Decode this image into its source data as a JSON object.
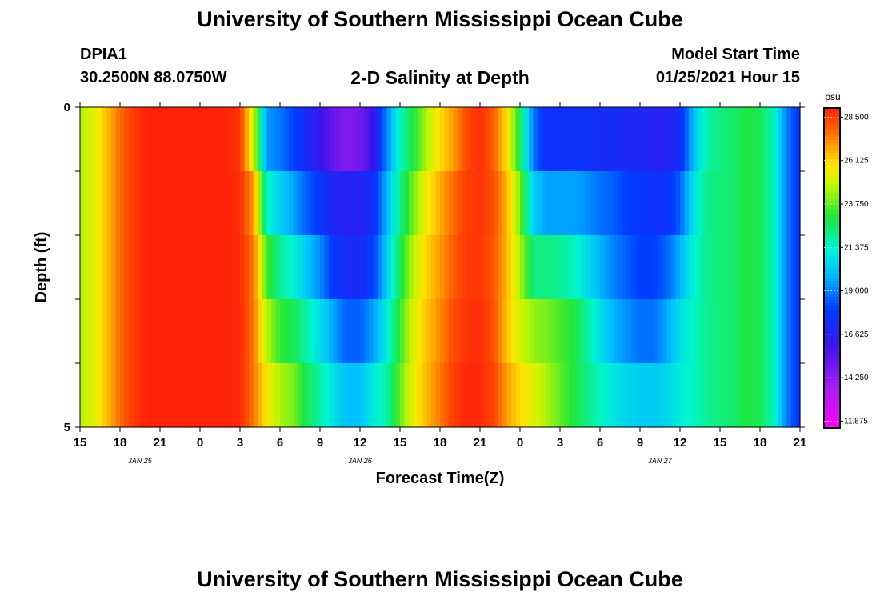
{
  "header": {
    "title": "University of Southern Mississippi Ocean Cube",
    "station_id": "DPIA1",
    "station_coords": "30.2500N 88.0750W",
    "plot_title": "2-D Salinity at Depth",
    "start_label": "Model Start Time",
    "start_value": "01/25/2021 Hour 15"
  },
  "footer": {
    "title": "University of Southern Mississippi Ocean Cube"
  },
  "chart_data": {
    "type": "heatmap",
    "title": "2-D Salinity at Depth",
    "xlabel": "Forecast Time(Z)",
    "ylabel": "Depth (ft)",
    "x_hours": [
      0,
      3,
      6,
      9,
      12,
      15,
      18,
      21,
      24,
      27,
      30,
      33,
      36,
      39,
      42,
      45,
      48,
      51,
      54
    ],
    "x_tick_labels": [
      "15",
      "18",
      "21",
      "0",
      "3",
      "6",
      "9",
      "12",
      "15",
      "18",
      "21",
      "0",
      "3",
      "6",
      "9",
      "12",
      "15",
      "18",
      "21"
    ],
    "date_labels": [
      {
        "label": "JAN  25",
        "hour": 4.5
      },
      {
        "label": "JAN  26",
        "hour": 21
      },
      {
        "label": "JAN  27",
        "hour": 43.5
      }
    ],
    "y_tick_labels": [
      "0",
      "5"
    ],
    "ylim": [
      0,
      5
    ],
    "depth_levels": 5,
    "colorbar": {
      "unit": "psu",
      "ticks": [
        "28.500",
        "26.125",
        "23.750",
        "21.375",
        "19.000",
        "16.625",
        "14.250",
        "11.875"
      ],
      "vmin": 11.5,
      "vmax": 29.0
    },
    "salinity_key_times": [
      0,
      1,
      2,
      3,
      4,
      5,
      6,
      7,
      8,
      9,
      10,
      11,
      12,
      13,
      14,
      15,
      16,
      17,
      18,
      19,
      20,
      21,
      22,
      23,
      24,
      25,
      26,
      27,
      28,
      29,
      30,
      31,
      32,
      33,
      34,
      35,
      36,
      37,
      38,
      39,
      40,
      41,
      42,
      43,
      44,
      45,
      46,
      47,
      48,
      49,
      50,
      51,
      52,
      53,
      54
    ],
    "salinity": [
      [
        24.5,
        25.3,
        26.4,
        27.7,
        28.6,
        29.0,
        29.0,
        29.0,
        29.0,
        29.0,
        29.0,
        29.0,
        28.4,
        23.5,
        18.8,
        18.5,
        17.5,
        16.5,
        15.5,
        13.5,
        12.3,
        13.0,
        15.0,
        18.5,
        21.2,
        22.6,
        24.0,
        25.5,
        26.5,
        28.0,
        28.8,
        27.5,
        25.5,
        22.0,
        18.0,
        17.0,
        17.0,
        16.5,
        16.5,
        16.5,
        16.5,
        16.5,
        16.5,
        16.5,
        16.5,
        16.5,
        19.5,
        21.5,
        22.2,
        22.5,
        23.0,
        22.8,
        21.5,
        19.0,
        17.5
      ],
      [
        24.5,
        25.3,
        26.4,
        27.7,
        28.6,
        29.0,
        29.0,
        29.0,
        29.0,
        29.0,
        29.0,
        29.0,
        28.8,
        26.5,
        20.0,
        19.2,
        18.5,
        17.8,
        17.0,
        16.6,
        16.6,
        16.6,
        17.5,
        19.5,
        21.8,
        23.5,
        25.0,
        26.5,
        27.5,
        28.5,
        28.8,
        28.3,
        26.5,
        23.5,
        19.5,
        18.0,
        18.0,
        18.5,
        18.5,
        18.0,
        18.0,
        17.5,
        17.5,
        17.0,
        17.0,
        18.0,
        20.5,
        22.0,
        22.3,
        22.5,
        23.0,
        22.8,
        21.5,
        19.0,
        17.5
      ],
      [
        24.5,
        25.3,
        26.4,
        27.7,
        28.6,
        29.0,
        29.0,
        29.0,
        29.0,
        29.0,
        29.0,
        29.0,
        28.8,
        27.5,
        23.0,
        21.5,
        20.5,
        19.2,
        18.5,
        17.0,
        17.0,
        16.8,
        17.5,
        19.8,
        22.5,
        24.5,
        26.0,
        27.0,
        28.0,
        28.5,
        28.5,
        28.0,
        26.8,
        24.5,
        21.0,
        21.0,
        21.0,
        20.5,
        20.0,
        19.5,
        19.0,
        18.5,
        18.0,
        18.0,
        18.0,
        19.0,
        21.0,
        22.2,
        22.4,
        22.5,
        23.0,
        22.8,
        21.5,
        19.0,
        17.5
      ],
      [
        24.5,
        25.3,
        26.4,
        27.7,
        28.6,
        29.0,
        29.0,
        29.0,
        29.0,
        29.0,
        29.0,
        29.0,
        28.9,
        27.5,
        24.0,
        22.5,
        22.0,
        21.2,
        19.8,
        18.5,
        17.5,
        17.5,
        18.5,
        20.5,
        23.0,
        25.0,
        26.2,
        27.0,
        28.0,
        28.6,
        28.8,
        28.0,
        26.5,
        24.5,
        23.5,
        23.5,
        23.0,
        22.5,
        21.5,
        20.0,
        19.0,
        18.5,
        18.0,
        18.0,
        19.0,
        20.5,
        21.5,
        22.0,
        22.3,
        22.5,
        23.0,
        22.8,
        21.5,
        19.0,
        17.5
      ],
      [
        24.5,
        25.3,
        26.4,
        27.7,
        28.6,
        29.0,
        29.0,
        29.0,
        29.0,
        29.0,
        29.0,
        29.0,
        28.9,
        27.5,
        25.5,
        24.0,
        23.5,
        22.5,
        21.5,
        20.5,
        19.5,
        19.5,
        20.5,
        21.5,
        23.5,
        25.5,
        26.5,
        27.5,
        28.5,
        28.8,
        28.8,
        28.2,
        26.5,
        25.5,
        25.0,
        24.5,
        24.0,
        23.5,
        22.5,
        21.5,
        20.5,
        20.0,
        19.5,
        19.5,
        20.0,
        21.0,
        21.5,
        22.0,
        22.3,
        22.5,
        23.0,
        22.8,
        21.5,
        19.0,
        17.5
      ],
      [
        24.5,
        25.3,
        26.4,
        27.7,
        28.6,
        29.0,
        29.0,
        29.0,
        29.0,
        29.0,
        29.0,
        29.0,
        28.9,
        27.5,
        26.0,
        25.0,
        24.5,
        23.0,
        22.0,
        21.0,
        20.5,
        20.5,
        21.5,
        22.0,
        24.0,
        25.5,
        26.5,
        27.5,
        28.5,
        29.0,
        29.0,
        28.5,
        27.5,
        26.5,
        25.5,
        24.5,
        23.5,
        22.5,
        22.0,
        21.5,
        21.2,
        21.0,
        21.0,
        21.0,
        21.0,
        21.2,
        21.5,
        22.0,
        22.3,
        22.5,
        23.0,
        22.8,
        21.5,
        19.0,
        17.5
      ]
    ]
  }
}
